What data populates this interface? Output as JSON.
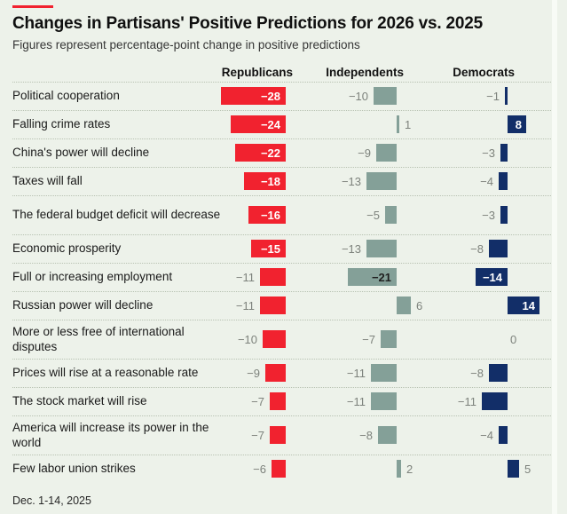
{
  "accent_color": "#f1222f",
  "header": {
    "title": "Changes in Partisans' Positive Predictions for 2026 vs. 2025",
    "subtitle": "Figures represent percentage-point change in positive predictions"
  },
  "footnote": "Dec. 1-14, 2025",
  "colors": {
    "background": "#edf2ea",
    "republicans": "#f1222f",
    "independents": "#84a098",
    "democrats": "#122e68",
    "outside_value_label": "#7d827c",
    "separator": "#b8c2b2"
  },
  "chart_data": {
    "type": "bar",
    "orientation": "horizontal-diverging",
    "title": "Changes in Partisans' Positive Predictions for 2026 vs. 2025",
    "subtitle": "Figures represent percentage-point change in positive predictions",
    "value_unit": "percentage points",
    "xlim": [
      -30,
      16
    ],
    "grid": false,
    "legend_position": "column-headers-top",
    "categories": [
      "Political cooperation",
      "Falling crime rates",
      "China's power will decline",
      "Taxes will fall",
      "The federal budget deficit will decrease",
      "Economic prosperity",
      "Full or increasing employment",
      "Russian power will decline",
      "More or less free of international disputes",
      "Prices will rise at a reasonable rate",
      "The stock market will rise",
      "America will increase its power in the world",
      "Few labor union strikes"
    ],
    "series": [
      {
        "name": "Republicans",
        "color": "#f1222f",
        "inside_label_color": "#ffffff",
        "values": [
          -28,
          -24,
          -22,
          -18,
          -16,
          -15,
          -11,
          -11,
          -10,
          -9,
          -7,
          -7,
          -6
        ]
      },
      {
        "name": "Independents",
        "color": "#84a098",
        "inside_label_color": "#1f1f1f",
        "values": [
          -10,
          1,
          -9,
          -13,
          -5,
          -13,
          -21,
          6,
          -7,
          -11,
          -11,
          -8,
          2
        ]
      },
      {
        "name": "Democrats",
        "color": "#122e68",
        "inside_label_color": "#ffffff",
        "values": [
          -1,
          8,
          -3,
          -4,
          -3,
          -8,
          -14,
          14,
          0,
          -8,
          -11,
          -4,
          5
        ]
      }
    ]
  }
}
